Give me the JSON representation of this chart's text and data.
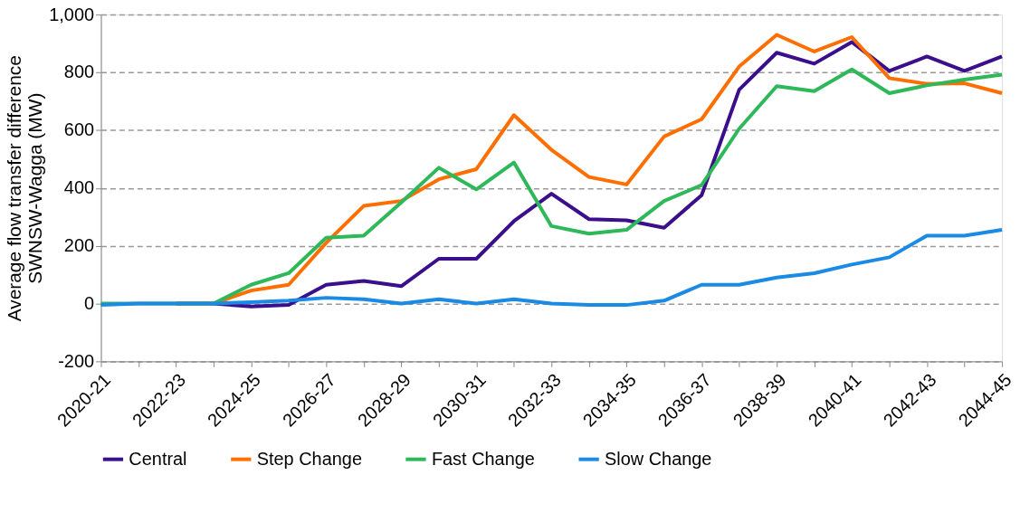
{
  "chart_data": {
    "type": "line",
    "ylabel": "Average flow transfer difference\nSWNSW-Wagga (MW)",
    "categories": [
      "2020-21",
      null,
      "2022-23",
      null,
      "2024-25",
      null,
      "2026-27",
      null,
      "2028-29",
      null,
      "2030-31",
      null,
      "2032-33",
      null,
      "2034-35",
      null,
      "2036-37",
      null,
      "2038-39",
      null,
      "2040-41",
      null,
      "2042-43",
      null,
      "2044-45"
    ],
    "series": [
      {
        "name": "Central",
        "color": "#3b0f8c",
        "values": [
          null,
          null,
          0,
          0,
          -10,
          -5,
          65,
          78,
          60,
          155,
          155,
          285,
          380,
          292,
          288,
          262,
          375,
          740,
          868,
          830,
          905,
          805,
          855,
          805,
          855
        ]
      },
      {
        "name": "Step Change",
        "color": "#ff6e00",
        "values": [
          null,
          null,
          0,
          0,
          45,
          65,
          210,
          338,
          355,
          430,
          465,
          652,
          532,
          438,
          412,
          578,
          638,
          820,
          930,
          872,
          922,
          780,
          760,
          762,
          728
        ]
      },
      {
        "name": "Fast Change",
        "color": "#2fb85a",
        "values": [
          0,
          0,
          0,
          0,
          65,
          105,
          228,
          235,
          350,
          470,
          395,
          488,
          268,
          242,
          255,
          355,
          410,
          605,
          752,
          735,
          810,
          728,
          755,
          775,
          792
        ]
      },
      {
        "name": "Slow Change",
        "color": "#1a8ae5",
        "values": [
          -5,
          0,
          0,
          0,
          5,
          10,
          20,
          15,
          0,
          15,
          0,
          15,
          0,
          -5,
          -5,
          10,
          65,
          65,
          90,
          105,
          135,
          160,
          235,
          235,
          255
        ]
      }
    ],
    "ylim": [
      -200,
      1000
    ],
    "yticks": [
      -200,
      0,
      200,
      400,
      600,
      800,
      {
        "value": 1000,
        "label": "1,000"
      }
    ],
    "grid": "y",
    "legend": "bottom",
    "marker": "none",
    "line_style": "solid"
  }
}
